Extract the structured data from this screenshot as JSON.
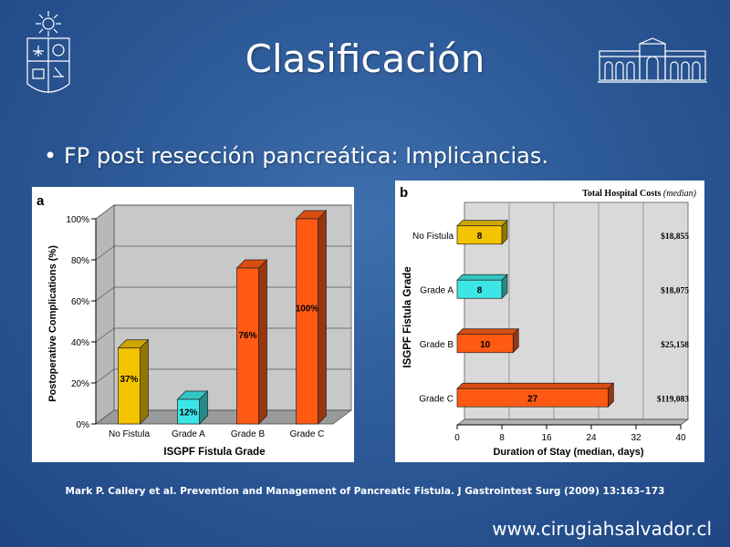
{
  "slide": {
    "title": "Clasificación",
    "bullet": "FP post resección pancreática: Implicancias.",
    "citation": "Mark P. Callery  et al. Prevention and Management of Pancreatic Fistula. J Gastrointest Surg (2009) 13:163–173",
    "website": "www.cirugiahsalvador.cl",
    "logos": {
      "left": "university-seal-icon",
      "right": "hospital-building-icon"
    },
    "colors": {
      "background": "#2d5a98",
      "text": "#ffffff"
    }
  },
  "chart_data": [
    {
      "panel_label": "a",
      "type": "bar",
      "categories": [
        "No Fistula",
        "Grade A",
        "Grade B",
        "Grade C"
      ],
      "values": [
        37,
        12,
        76,
        100
      ],
      "data_labels": [
        "37%",
        "12%",
        "76%",
        "100%"
      ],
      "colors": [
        "#f5c400",
        "#3ce6e6",
        "#ff5a14",
        "#ff5a14"
      ],
      "ylabel": "Postoperative Complications (%)",
      "xlabel": "ISGPF Fistula Grade",
      "ylim": [
        0,
        100
      ],
      "yticks": [
        "0%",
        "20%",
        "40%",
        "60%",
        "80%",
        "100%"
      ],
      "ytick_values": [
        0,
        20,
        40,
        60,
        80,
        100
      ],
      "grid": true
    },
    {
      "panel_label": "b",
      "type": "bar",
      "orientation": "horizontal",
      "categories": [
        "No Fistula",
        "Grade A",
        "Grade B",
        "Grade C"
      ],
      "values": [
        8,
        8,
        10,
        27
      ],
      "data_labels": [
        "8",
        "8",
        "10",
        "27"
      ],
      "colors": [
        "#f5c400",
        "#3ce6e6",
        "#ff5a14",
        "#ff5a14"
      ],
      "xlabel": "Duration of Stay (median, days)",
      "ylabel": "ISGPF Fistula Grade",
      "xlim": [
        0,
        40
      ],
      "xticks": [
        "0",
        "8",
        "16",
        "24",
        "32",
        "40"
      ],
      "xtick_values": [
        0,
        8,
        16,
        24,
        32,
        40
      ],
      "costs_header": "Total Hospital Costs",
      "costs_header_suffix": "(median)",
      "costs": [
        "$18,855",
        "$18,075",
        "$25,158",
        "$119,083"
      ],
      "grid": true
    }
  ]
}
